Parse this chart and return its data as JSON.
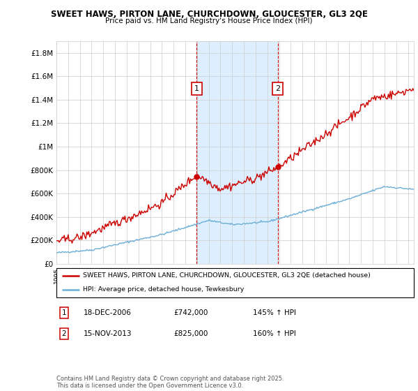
{
  "title": "SWEET HAWS, PIRTON LANE, CHURCHDOWN, GLOUCESTER, GL3 2QE",
  "subtitle": "Price paid vs. HM Land Registry's House Price Index (HPI)",
  "ylim": [
    0,
    1900000
  ],
  "xlim_start": 1995.0,
  "xlim_end": 2025.5,
  "sale1_year": 2006.96,
  "sale1_price": 742000,
  "sale1_label": "1",
  "sale1_date": "18-DEC-2006",
  "sale1_pct": "145% ↑ HPI",
  "sale2_year": 2013.88,
  "sale2_price": 825000,
  "sale2_label": "2",
  "sale2_date": "15-NOV-2013",
  "sale2_pct": "160% ↑ HPI",
  "hpi_color": "#6baed6",
  "property_color": "#cc0000",
  "shade_color": "#ddeeff",
  "grid_color": "#cccccc",
  "background_color": "#ffffff",
  "legend_label_property": "SWEET HAWS, PIRTON LANE, CHURCHDOWN, GLOUCESTER, GL3 2QE (detached house)",
  "legend_label_hpi": "HPI: Average price, detached house, Tewkesbury",
  "footer": "Contains HM Land Registry data © Crown copyright and database right 2025.\nThis data is licensed under the Open Government Licence v3.0.",
  "ytick_labels": [
    "£0",
    "£200K",
    "£400K",
    "£600K",
    "£800K",
    "£1M",
    "£1.2M",
    "£1.4M",
    "£1.6M",
    "£1.8M"
  ],
  "ytick_values": [
    0,
    200000,
    400000,
    600000,
    800000,
    1000000,
    1200000,
    1400000,
    1600000,
    1800000
  ]
}
